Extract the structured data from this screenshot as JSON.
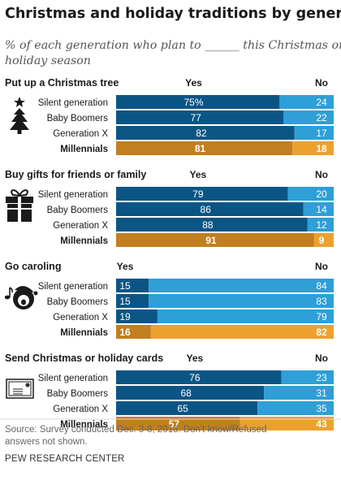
{
  "title": "Christmas and holiday traditions by generation",
  "subtitle_line1": "% of each generation who plan to ______ this Christmas or",
  "subtitle_line2": "holiday season",
  "yes_label": "Yes",
  "no_label": "No",
  "source_line1": "Source: Survey conducted Dec. 3-8, 2013. Don't know/Refused",
  "source_line2": "answers not shown.",
  "credit": "PEW RESEARCH CENTER",
  "colors": {
    "yes": "#0b5585",
    "no": "#2e9fd7",
    "yes_highlight": "#c17f1f",
    "no_highlight": "#eca12f",
    "icon": "#1a1a1a"
  },
  "chart_data": [
    {
      "type": "bar",
      "stacked": true,
      "orientation": "horizontal",
      "title": "Put up a Christmas tree",
      "icon": "christmas-tree-icon",
      "categories": [
        "Silent generation",
        "Baby Boomers",
        "Generation X",
        "Millennials"
      ],
      "highlight": "Millennials",
      "series": [
        {
          "name": "Yes",
          "values": [
            75,
            77,
            82,
            81
          ],
          "labels": [
            "75%",
            "77",
            "82",
            "81"
          ]
        },
        {
          "name": "No",
          "values": [
            24,
            22,
            17,
            18
          ],
          "labels": [
            "24",
            "22",
            "17",
            "18"
          ]
        }
      ]
    },
    {
      "type": "bar",
      "stacked": true,
      "orientation": "horizontal",
      "title": "Buy gifts for friends or family",
      "icon": "gift-icon",
      "categories": [
        "Silent generation",
        "Baby Boomers",
        "Generation X",
        "Millennials"
      ],
      "highlight": "Millennials",
      "series": [
        {
          "name": "Yes",
          "values": [
            79,
            86,
            88,
            91
          ],
          "labels": [
            "79",
            "86",
            "88",
            "91"
          ]
        },
        {
          "name": "No",
          "values": [
            20,
            14,
            12,
            9
          ],
          "labels": [
            "20",
            "14",
            "12",
            "9"
          ]
        }
      ]
    },
    {
      "type": "bar",
      "stacked": true,
      "orientation": "horizontal",
      "title": "Go caroling",
      "icon": "caroler-icon",
      "categories": [
        "Silent generation",
        "Baby Boomers",
        "Generation X",
        "Millennials"
      ],
      "highlight": "Millennials",
      "series": [
        {
          "name": "Yes",
          "values": [
            15,
            15,
            19,
            16
          ],
          "labels": [
            "15",
            "15",
            "19",
            "16"
          ]
        },
        {
          "name": "No",
          "values": [
            84,
            83,
            79,
            82
          ],
          "labels": [
            "84",
            "83",
            "79",
            "82"
          ]
        }
      ]
    },
    {
      "type": "bar",
      "stacked": true,
      "orientation": "horizontal",
      "title": "Send Christmas or holiday cards",
      "icon": "card-envelope-icon",
      "categories": [
        "Silent generation",
        "Baby Boomers",
        "Generation X",
        "Millennials"
      ],
      "highlight": "Millennials",
      "series": [
        {
          "name": "Yes",
          "values": [
            76,
            68,
            65,
            57
          ],
          "labels": [
            "76",
            "68",
            "65",
            "57"
          ]
        },
        {
          "name": "No",
          "values": [
            23,
            31,
            35,
            43
          ],
          "labels": [
            "23",
            "31",
            "35",
            "43"
          ]
        }
      ]
    }
  ]
}
